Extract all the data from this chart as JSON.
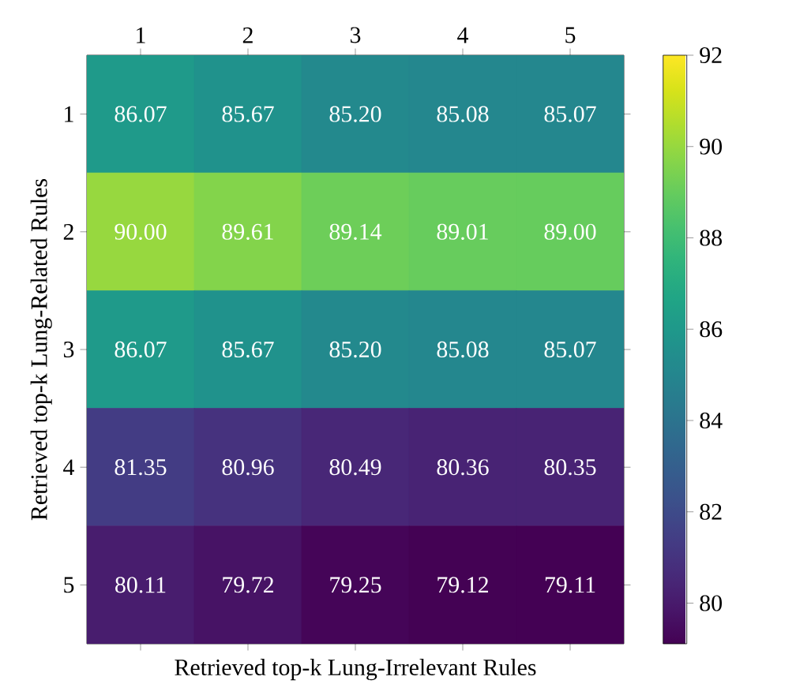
{
  "chart_data": {
    "type": "heatmap",
    "xlabel": "Retrieved top-k Lung-Irrelevant Rules",
    "ylabel": "Retrieved top-k Lung-Related Rules",
    "categories": [
      "1",
      "2",
      "3",
      "4",
      "5"
    ],
    "y_categories": [
      "1",
      "2",
      "3",
      "4",
      "5"
    ],
    "cells": [
      [
        86.07,
        85.67,
        85.2,
        85.08,
        85.07
      ],
      [
        90.0,
        89.61,
        89.14,
        89.01,
        89.0
      ],
      [
        86.07,
        85.67,
        85.2,
        85.08,
        85.07
      ],
      [
        81.35,
        80.96,
        80.49,
        80.36,
        80.35
      ],
      [
        80.11,
        79.72,
        79.25,
        79.12,
        79.11
      ]
    ],
    "cell_labels": [
      [
        "86.07",
        "85.67",
        "85.20",
        "85.08",
        "85.07"
      ],
      [
        "90.00",
        "89.61",
        "89.14",
        "89.01",
        "89.00"
      ],
      [
        "86.07",
        "85.67",
        "85.20",
        "85.08",
        "85.07"
      ],
      [
        "81.35",
        "80.96",
        "80.49",
        "80.36",
        "80.35"
      ],
      [
        "80.11",
        "79.72",
        "79.25",
        "79.12",
        "79.11"
      ]
    ],
    "clim": [
      79.11,
      92
    ],
    "cticks": [
      80,
      82,
      84,
      86,
      88,
      90,
      92
    ]
  }
}
